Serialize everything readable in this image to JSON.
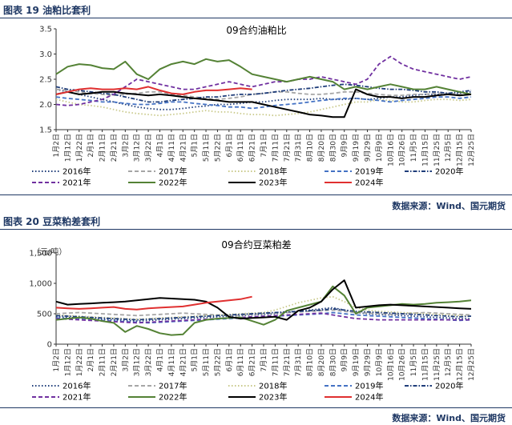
{
  "figures": [
    {
      "label": "图表 19",
      "title": "油粕比套利",
      "source": "数据来源：Wind、国元期货"
    },
    {
      "label": "图表 20",
      "title": "豆菜粕差套利",
      "source": "数据来源：Wind、国元期货"
    }
  ],
  "chart_data": [
    {
      "type": "line",
      "title": "09合约油粕比",
      "ylabel": "",
      "ylim": [
        1.5,
        3.5
      ],
      "y_ticks": [
        "1.5",
        "2.0",
        "2.5",
        "3.0",
        "3.5"
      ],
      "categories": [
        "1月2日",
        "1月12日",
        "1月22日",
        "2月1日",
        "2月11日",
        "2月21日",
        "3月2日",
        "3月12日",
        "3月22日",
        "4月1日",
        "4月11日",
        "4月21日",
        "5月1日",
        "5月11日",
        "5月22日",
        "6月1日",
        "6月11日",
        "6月21日",
        "7月1日",
        "7月11日",
        "7月21日",
        "7月31日",
        "8月10日",
        "8月20日",
        "8月30日",
        "9月9日",
        "9月19日",
        "9月29日",
        "10月9日",
        "10月16日",
        "10月26日",
        "11月5日",
        "11月15日",
        "11月25日",
        "12月5日",
        "12月15日",
        "12月25日"
      ],
      "series": [
        {
          "name": "2016年",
          "color": "#1f3d7a",
          "dash": "dot",
          "values": [
            2.3,
            2.25,
            2.2,
            2.15,
            2.1,
            2.05,
            2.0,
            1.95,
            1.92,
            1.9,
            1.9,
            1.92,
            1.95,
            1.97,
            2.0,
            2.0,
            2.02,
            2.05,
            2.05,
            2.08,
            2.1,
            2.1,
            2.1,
            2.12,
            2.1,
            2.1,
            2.12,
            2.1,
            2.12,
            2.15,
            2.15,
            2.18,
            2.2,
            2.2,
            2.2,
            2.22,
            2.25
          ]
        },
        {
          "name": "2017年",
          "color": "#a6a6a6",
          "dash": "dash",
          "values": [
            2.3,
            2.28,
            2.25,
            2.22,
            2.2,
            2.18,
            2.2,
            2.22,
            2.25,
            2.25,
            2.2,
            2.18,
            2.15,
            2.12,
            2.1,
            2.12,
            2.15,
            2.2,
            2.22,
            2.25,
            2.25,
            2.22,
            2.2,
            2.2,
            2.22,
            2.25,
            2.25,
            2.22,
            2.2,
            2.18,
            2.18,
            2.2,
            2.2,
            2.22,
            2.22,
            2.2,
            2.2
          ]
        },
        {
          "name": "2018年",
          "color": "#c9c98a",
          "dash": "dot",
          "values": [
            2.1,
            2.05,
            2.0,
            1.98,
            1.95,
            1.9,
            1.85,
            1.82,
            1.8,
            1.78,
            1.8,
            1.82,
            1.85,
            1.88,
            1.85,
            1.85,
            1.82,
            1.8,
            1.8,
            1.78,
            1.8,
            1.82,
            1.85,
            1.9,
            1.95,
            2.0,
            2.05,
            2.05,
            2.1,
            2.08,
            2.05,
            2.05,
            2.08,
            2.1,
            2.1,
            2.08,
            2.1
          ]
        },
        {
          "name": "2019年",
          "color": "#4472c4",
          "dash": "dash",
          "values": [
            2.15,
            2.12,
            2.1,
            2.08,
            2.05,
            2.05,
            2.02,
            2.0,
            2.0,
            2.02,
            2.05,
            2.05,
            2.02,
            2.0,
            1.98,
            1.95,
            1.95,
            1.92,
            1.95,
            1.98,
            2.0,
            2.02,
            2.05,
            2.08,
            2.1,
            2.12,
            2.12,
            2.1,
            2.08,
            2.05,
            2.08,
            2.1,
            2.12,
            2.15,
            2.15,
            2.12,
            2.15
          ]
        },
        {
          "name": "2020年",
          "color": "#1f3d7a",
          "dash": "dashdot",
          "values": [
            2.35,
            2.3,
            2.28,
            2.25,
            2.22,
            2.2,
            2.15,
            2.1,
            2.05,
            2.05,
            2.08,
            2.1,
            2.12,
            2.15,
            2.15,
            2.18,
            2.2,
            2.2,
            2.22,
            2.25,
            2.28,
            2.3,
            2.32,
            2.35,
            2.38,
            2.4,
            2.38,
            2.35,
            2.32,
            2.3,
            2.3,
            2.28,
            2.25,
            2.25,
            2.22,
            2.25,
            2.28
          ]
        },
        {
          "name": "2021年",
          "color": "#7030a0",
          "dash": "dash",
          "values": [
            2.0,
            1.98,
            2.0,
            2.05,
            2.1,
            2.2,
            2.35,
            2.5,
            2.45,
            2.4,
            2.35,
            2.3,
            2.3,
            2.35,
            2.4,
            2.45,
            2.4,
            2.35,
            2.4,
            2.45,
            2.45,
            2.5,
            2.5,
            2.55,
            2.5,
            2.45,
            2.4,
            2.5,
            2.8,
            2.95,
            2.8,
            2.7,
            2.65,
            2.6,
            2.55,
            2.5,
            2.55
          ]
        },
        {
          "name": "2022年",
          "color": "#548235",
          "dash": "solid",
          "values": [
            2.6,
            2.75,
            2.8,
            2.78,
            2.72,
            2.7,
            2.85,
            2.6,
            2.5,
            2.7,
            2.8,
            2.85,
            2.8,
            2.9,
            2.85,
            2.88,
            2.75,
            2.6,
            2.55,
            2.5,
            2.45,
            2.5,
            2.55,
            2.5,
            2.45,
            2.3,
            2.35,
            2.3,
            2.35,
            2.4,
            2.35,
            2.3,
            2.3,
            2.35,
            2.3,
            2.25,
            2.2
          ]
        },
        {
          "name": "2023年",
          "color": "#000000",
          "dash": "solid",
          "values": [
            2.2,
            2.25,
            2.2,
            2.22,
            2.25,
            2.25,
            2.22,
            2.2,
            2.18,
            2.2,
            2.18,
            2.15,
            2.12,
            2.1,
            2.08,
            2.05,
            2.05,
            2.05,
            2.0,
            1.95,
            1.9,
            1.85,
            1.8,
            1.78,
            1.75,
            1.75,
            2.3,
            2.2,
            2.15,
            2.15,
            2.12,
            2.15,
            2.15,
            2.18,
            2.2,
            2.18,
            2.2
          ]
        },
        {
          "name": "2024年",
          "color": "#e03030",
          "dash": "solid",
          "values": [
            2.2,
            2.25,
            2.3,
            2.32,
            2.3,
            2.3,
            2.32,
            2.3,
            2.35,
            2.28,
            2.22,
            2.2,
            2.25,
            2.28,
            2.28,
            2.3,
            2.32,
            2.3,
            null,
            null,
            null,
            null,
            null,
            null,
            null,
            null,
            null,
            null,
            null,
            null,
            null,
            null,
            null,
            null,
            null,
            null,
            null
          ]
        }
      ]
    },
    {
      "type": "line",
      "title": "09合约豆菜粕差",
      "ylabel": "（元/吨）",
      "ylim": [
        0,
        1500
      ],
      "y_ticks": [
        "0",
        "500",
        "1,000",
        "1,500"
      ],
      "categories": [
        "1月2日",
        "1月12日",
        "1月22日",
        "2月1日",
        "2月11日",
        "2月21日",
        "3月2日",
        "3月12日",
        "3月22日",
        "4月1日",
        "4月11日",
        "4月21日",
        "5月1日",
        "5月11日",
        "5月22日",
        "6月1日",
        "6月11日",
        "6月21日",
        "7月1日",
        "7月11日",
        "7月21日",
        "7月31日",
        "8月10日",
        "8月20日",
        "8月30日",
        "9月9日",
        "9月19日",
        "9月29日",
        "10月9日",
        "10月16日",
        "10月26日",
        "11月5日",
        "11月15日",
        "11月25日",
        "12月5日",
        "12月15日",
        "12月25日"
      ],
      "series": [
        {
          "name": "2016年",
          "color": "#1f3d7a",
          "dash": "dot",
          "values": [
            450,
            440,
            430,
            420,
            410,
            400,
            390,
            380,
            390,
            400,
            410,
            420,
            430,
            440,
            450,
            460,
            470,
            480,
            490,
            500,
            520,
            540,
            560,
            580,
            600,
            560,
            520,
            500,
            490,
            480,
            470,
            460,
            450,
            440,
            430,
            420,
            420
          ]
        },
        {
          "name": "2017年",
          "color": "#a6a6a6",
          "dash": "dash",
          "values": [
            500,
            510,
            520,
            510,
            500,
            490,
            480,
            470,
            480,
            490,
            500,
            510,
            500,
            490,
            480,
            470,
            480,
            490,
            500,
            510,
            520,
            530,
            540,
            550,
            560,
            540,
            520,
            510,
            500,
            490,
            500,
            510,
            520,
            510,
            500,
            490,
            480
          ]
        },
        {
          "name": "2018年",
          "color": "#c9c98a",
          "dash": "dot",
          "values": [
            480,
            470,
            460,
            450,
            440,
            430,
            420,
            410,
            420,
            430,
            440,
            450,
            460,
            470,
            480,
            490,
            500,
            510,
            520,
            560,
            620,
            680,
            720,
            760,
            780,
            700,
            600,
            560,
            540,
            530,
            520,
            510,
            500,
            490,
            480,
            470,
            460
          ]
        },
        {
          "name": "2019年",
          "color": "#4472c4",
          "dash": "dash",
          "values": [
            430,
            420,
            410,
            400,
            390,
            380,
            370,
            360,
            350,
            360,
            370,
            380,
            390,
            400,
            410,
            420,
            430,
            440,
            450,
            460,
            470,
            480,
            490,
            500,
            520,
            500,
            480,
            470,
            460,
            450,
            440,
            430,
            420,
            410,
            400,
            390,
            400
          ]
        },
        {
          "name": "2020年",
          "color": "#1f3d7a",
          "dash": "dashdot",
          "values": [
            470,
            460,
            450,
            440,
            430,
            420,
            410,
            400,
            410,
            420,
            430,
            440,
            450,
            460,
            470,
            480,
            490,
            500,
            510,
            520,
            530,
            540,
            550,
            560,
            580,
            560,
            540,
            530,
            520,
            510,
            500,
            490,
            480,
            470,
            460,
            450,
            460
          ]
        },
        {
          "name": "2021年",
          "color": "#7030a0",
          "dash": "dash",
          "values": [
            420,
            410,
            400,
            390,
            380,
            370,
            360,
            350,
            360,
            370,
            380,
            390,
            400,
            410,
            420,
            430,
            440,
            450,
            460,
            470,
            480,
            490,
            500,
            510,
            480,
            450,
            420,
            410,
            400,
            400,
            400,
            400,
            400,
            400,
            400,
            400,
            400
          ]
        },
        {
          "name": "2022年",
          "color": "#548235",
          "dash": "solid",
          "values": [
            400,
            420,
            440,
            420,
            380,
            350,
            200,
            300,
            250,
            180,
            150,
            160,
            350,
            400,
            420,
            430,
            440,
            380,
            320,
            400,
            550,
            600,
            650,
            700,
            950,
            800,
            500,
            600,
            620,
            640,
            660,
            650,
            660,
            680,
            690,
            700,
            720
          ]
        },
        {
          "name": "2023年",
          "color": "#000000",
          "dash": "solid",
          "values": [
            700,
            650,
            660,
            670,
            680,
            690,
            700,
            720,
            740,
            760,
            750,
            740,
            730,
            700,
            600,
            450,
            420,
            430,
            440,
            450,
            400,
            550,
            600,
            700,
            900,
            1050,
            600,
            620,
            640,
            650,
            640,
            630,
            620,
            610,
            600,
            590,
            580
          ]
        },
        {
          "name": "2024年",
          "color": "#e03030",
          "dash": "solid",
          "values": [
            600,
            590,
            580,
            590,
            600,
            610,
            580,
            570,
            590,
            600,
            610,
            620,
            650,
            680,
            700,
            720,
            740,
            780,
            null,
            null,
            null,
            null,
            null,
            null,
            null,
            null,
            null,
            null,
            null,
            null,
            null,
            null,
            null,
            null,
            null,
            null,
            null
          ]
        }
      ]
    }
  ]
}
